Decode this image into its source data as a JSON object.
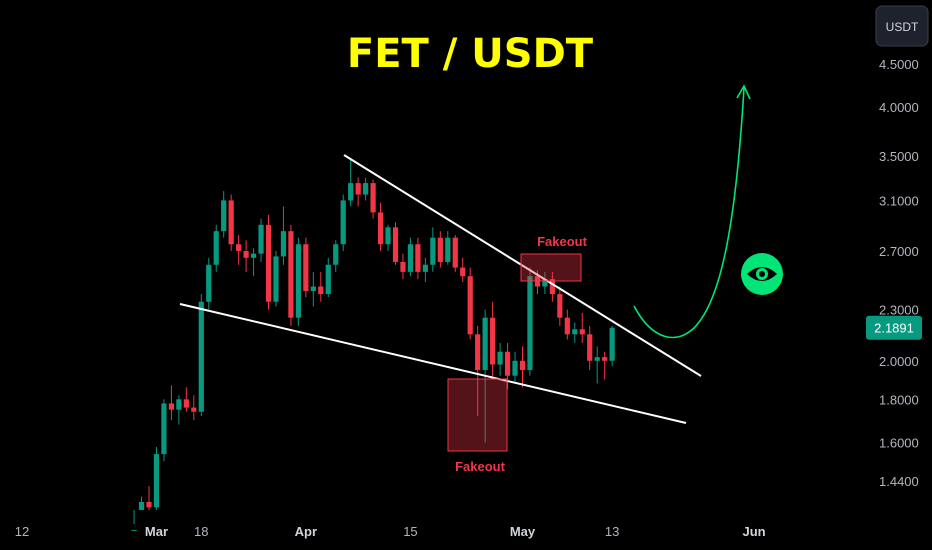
{
  "chart_data": {
    "type": "candlestick",
    "title": "FET / USDT",
    "quote_currency": "USDT",
    "current_price": "2.1891",
    "y_scale": "log",
    "y_range": [
      1.32,
      5.1
    ],
    "y_ticks": [
      "4.5000",
      "4.0000",
      "3.5000",
      "3.1000",
      "2.7000",
      "2.3000",
      "2.0000",
      "1.8000",
      "1.6000",
      "1.4400"
    ],
    "x_ticks": [
      {
        "label": "12",
        "day": 0,
        "month": false
      },
      {
        "label": "Mar",
        "day": 18,
        "month": true
      },
      {
        "label": "18",
        "day": 24,
        "month": false
      },
      {
        "label": "Apr",
        "day": 38,
        "month": true
      },
      {
        "label": "15",
        "day": 52,
        "month": false
      },
      {
        "label": "May",
        "day": 67,
        "month": true
      },
      {
        "label": "13",
        "day": 79,
        "month": false
      },
      {
        "label": "Jun",
        "day": 98,
        "month": true
      }
    ],
    "candles": [
      [
        15,
        1.2,
        1.28,
        1.18,
        1.26
      ],
      [
        16,
        1.26,
        1.38,
        1.24,
        1.36
      ],
      [
        17,
        1.36,
        1.42,
        1.3,
        1.34
      ],
      [
        18,
        1.34,
        1.58,
        1.32,
        1.55
      ],
      [
        19,
        1.55,
        1.8,
        1.52,
        1.78
      ],
      [
        20,
        1.78,
        1.87,
        1.7,
        1.75
      ],
      [
        21,
        1.75,
        1.82,
        1.68,
        1.8
      ],
      [
        22,
        1.8,
        1.86,
        1.74,
        1.76
      ],
      [
        23,
        1.76,
        1.82,
        1.7,
        1.74
      ],
      [
        24,
        1.74,
        2.4,
        1.72,
        2.35
      ],
      [
        25,
        2.35,
        2.65,
        2.3,
        2.6
      ],
      [
        26,
        2.6,
        2.9,
        2.55,
        2.85
      ],
      [
        27,
        2.85,
        3.18,
        2.8,
        3.1
      ],
      [
        28,
        3.1,
        3.15,
        2.7,
        2.75
      ],
      [
        29,
        2.75,
        2.82,
        2.6,
        2.7
      ],
      [
        30,
        2.7,
        2.78,
        2.55,
        2.65
      ],
      [
        31,
        2.65,
        2.72,
        2.52,
        2.68
      ],
      [
        32,
        2.68,
        2.95,
        2.62,
        2.9
      ],
      [
        33,
        2.9,
        2.98,
        2.3,
        2.35
      ],
      [
        34,
        2.35,
        2.7,
        2.32,
        2.66
      ],
      [
        35,
        2.66,
        3.05,
        2.6,
        2.85
      ],
      [
        36,
        2.85,
        2.9,
        2.2,
        2.25
      ],
      [
        37,
        2.25,
        2.8,
        2.2,
        2.75
      ],
      [
        38,
        2.75,
        2.8,
        2.38,
        2.42
      ],
      [
        39,
        2.42,
        2.55,
        2.32,
        2.45
      ],
      [
        40,
        2.45,
        2.55,
        2.35,
        2.4
      ],
      [
        41,
        2.4,
        2.65,
        2.38,
        2.6
      ],
      [
        42,
        2.6,
        2.78,
        2.55,
        2.75
      ],
      [
        43,
        2.75,
        3.15,
        2.7,
        3.1
      ],
      [
        44,
        3.1,
        3.48,
        3.05,
        3.25
      ],
      [
        45,
        3.25,
        3.3,
        3.05,
        3.15
      ],
      [
        46,
        3.15,
        3.3,
        3.1,
        3.25
      ],
      [
        47,
        3.25,
        3.28,
        2.95,
        3.0
      ],
      [
        48,
        3.0,
        3.08,
        2.7,
        2.75
      ],
      [
        49,
        2.75,
        2.9,
        2.7,
        2.88
      ],
      [
        50,
        2.88,
        2.92,
        2.6,
        2.62
      ],
      [
        51,
        2.62,
        2.68,
        2.5,
        2.55
      ],
      [
        52,
        2.55,
        2.8,
        2.52,
        2.75
      ],
      [
        53,
        2.75,
        2.8,
        2.5,
        2.55
      ],
      [
        54,
        2.55,
        2.65,
        2.48,
        2.6
      ],
      [
        55,
        2.6,
        2.88,
        2.55,
        2.8
      ],
      [
        56,
        2.8,
        2.85,
        2.58,
        2.62
      ],
      [
        57,
        2.62,
        2.85,
        2.6,
        2.8
      ],
      [
        58,
        2.8,
        2.82,
        2.55,
        2.58
      ],
      [
        59,
        2.58,
        2.65,
        2.48,
        2.52
      ],
      [
        60,
        2.52,
        2.58,
        2.12,
        2.15
      ],
      [
        61,
        2.15,
        2.2,
        1.72,
        1.95
      ],
      [
        62,
        1.95,
        2.3,
        1.6,
        2.25
      ],
      [
        63,
        2.25,
        2.35,
        1.9,
        1.98
      ],
      [
        64,
        1.98,
        2.1,
        1.92,
        2.05
      ],
      [
        65,
        2.05,
        2.1,
        1.85,
        1.92
      ],
      [
        66,
        1.92,
        2.05,
        1.88,
        2.0
      ],
      [
        67,
        2.0,
        2.08,
        1.86,
        1.95
      ],
      [
        68,
        1.95,
        2.58,
        1.92,
        2.52
      ],
      [
        69,
        2.52,
        2.56,
        2.4,
        2.45
      ],
      [
        70,
        2.45,
        2.55,
        2.4,
        2.5
      ],
      [
        71,
        2.5,
        2.55,
        2.35,
        2.4
      ],
      [
        72,
        2.4,
        2.45,
        2.2,
        2.25
      ],
      [
        73,
        2.25,
        2.3,
        2.12,
        2.15
      ],
      [
        74,
        2.15,
        2.22,
        2.1,
        2.18
      ],
      [
        75,
        2.18,
        2.28,
        2.1,
        2.15
      ],
      [
        76,
        2.15,
        2.2,
        1.95,
        2.0
      ],
      [
        77,
        2.0,
        2.08,
        1.88,
        2.02
      ],
      [
        78,
        2.02,
        2.05,
        1.9,
        2.0
      ],
      [
        79,
        2.0,
        2.2,
        1.97,
        2.1891
      ]
    ],
    "annotations": [
      {
        "label": "Fakeout",
        "position": "above"
      },
      {
        "label": "Fakeout",
        "position": "below"
      }
    ],
    "colors": {
      "up": "#089981",
      "down": "#f23645",
      "title": "#ffff00",
      "arrow": "#00e676",
      "trendline": "#ffffff",
      "price_badge": "#089981"
    },
    "icon": "eye-icon"
  }
}
